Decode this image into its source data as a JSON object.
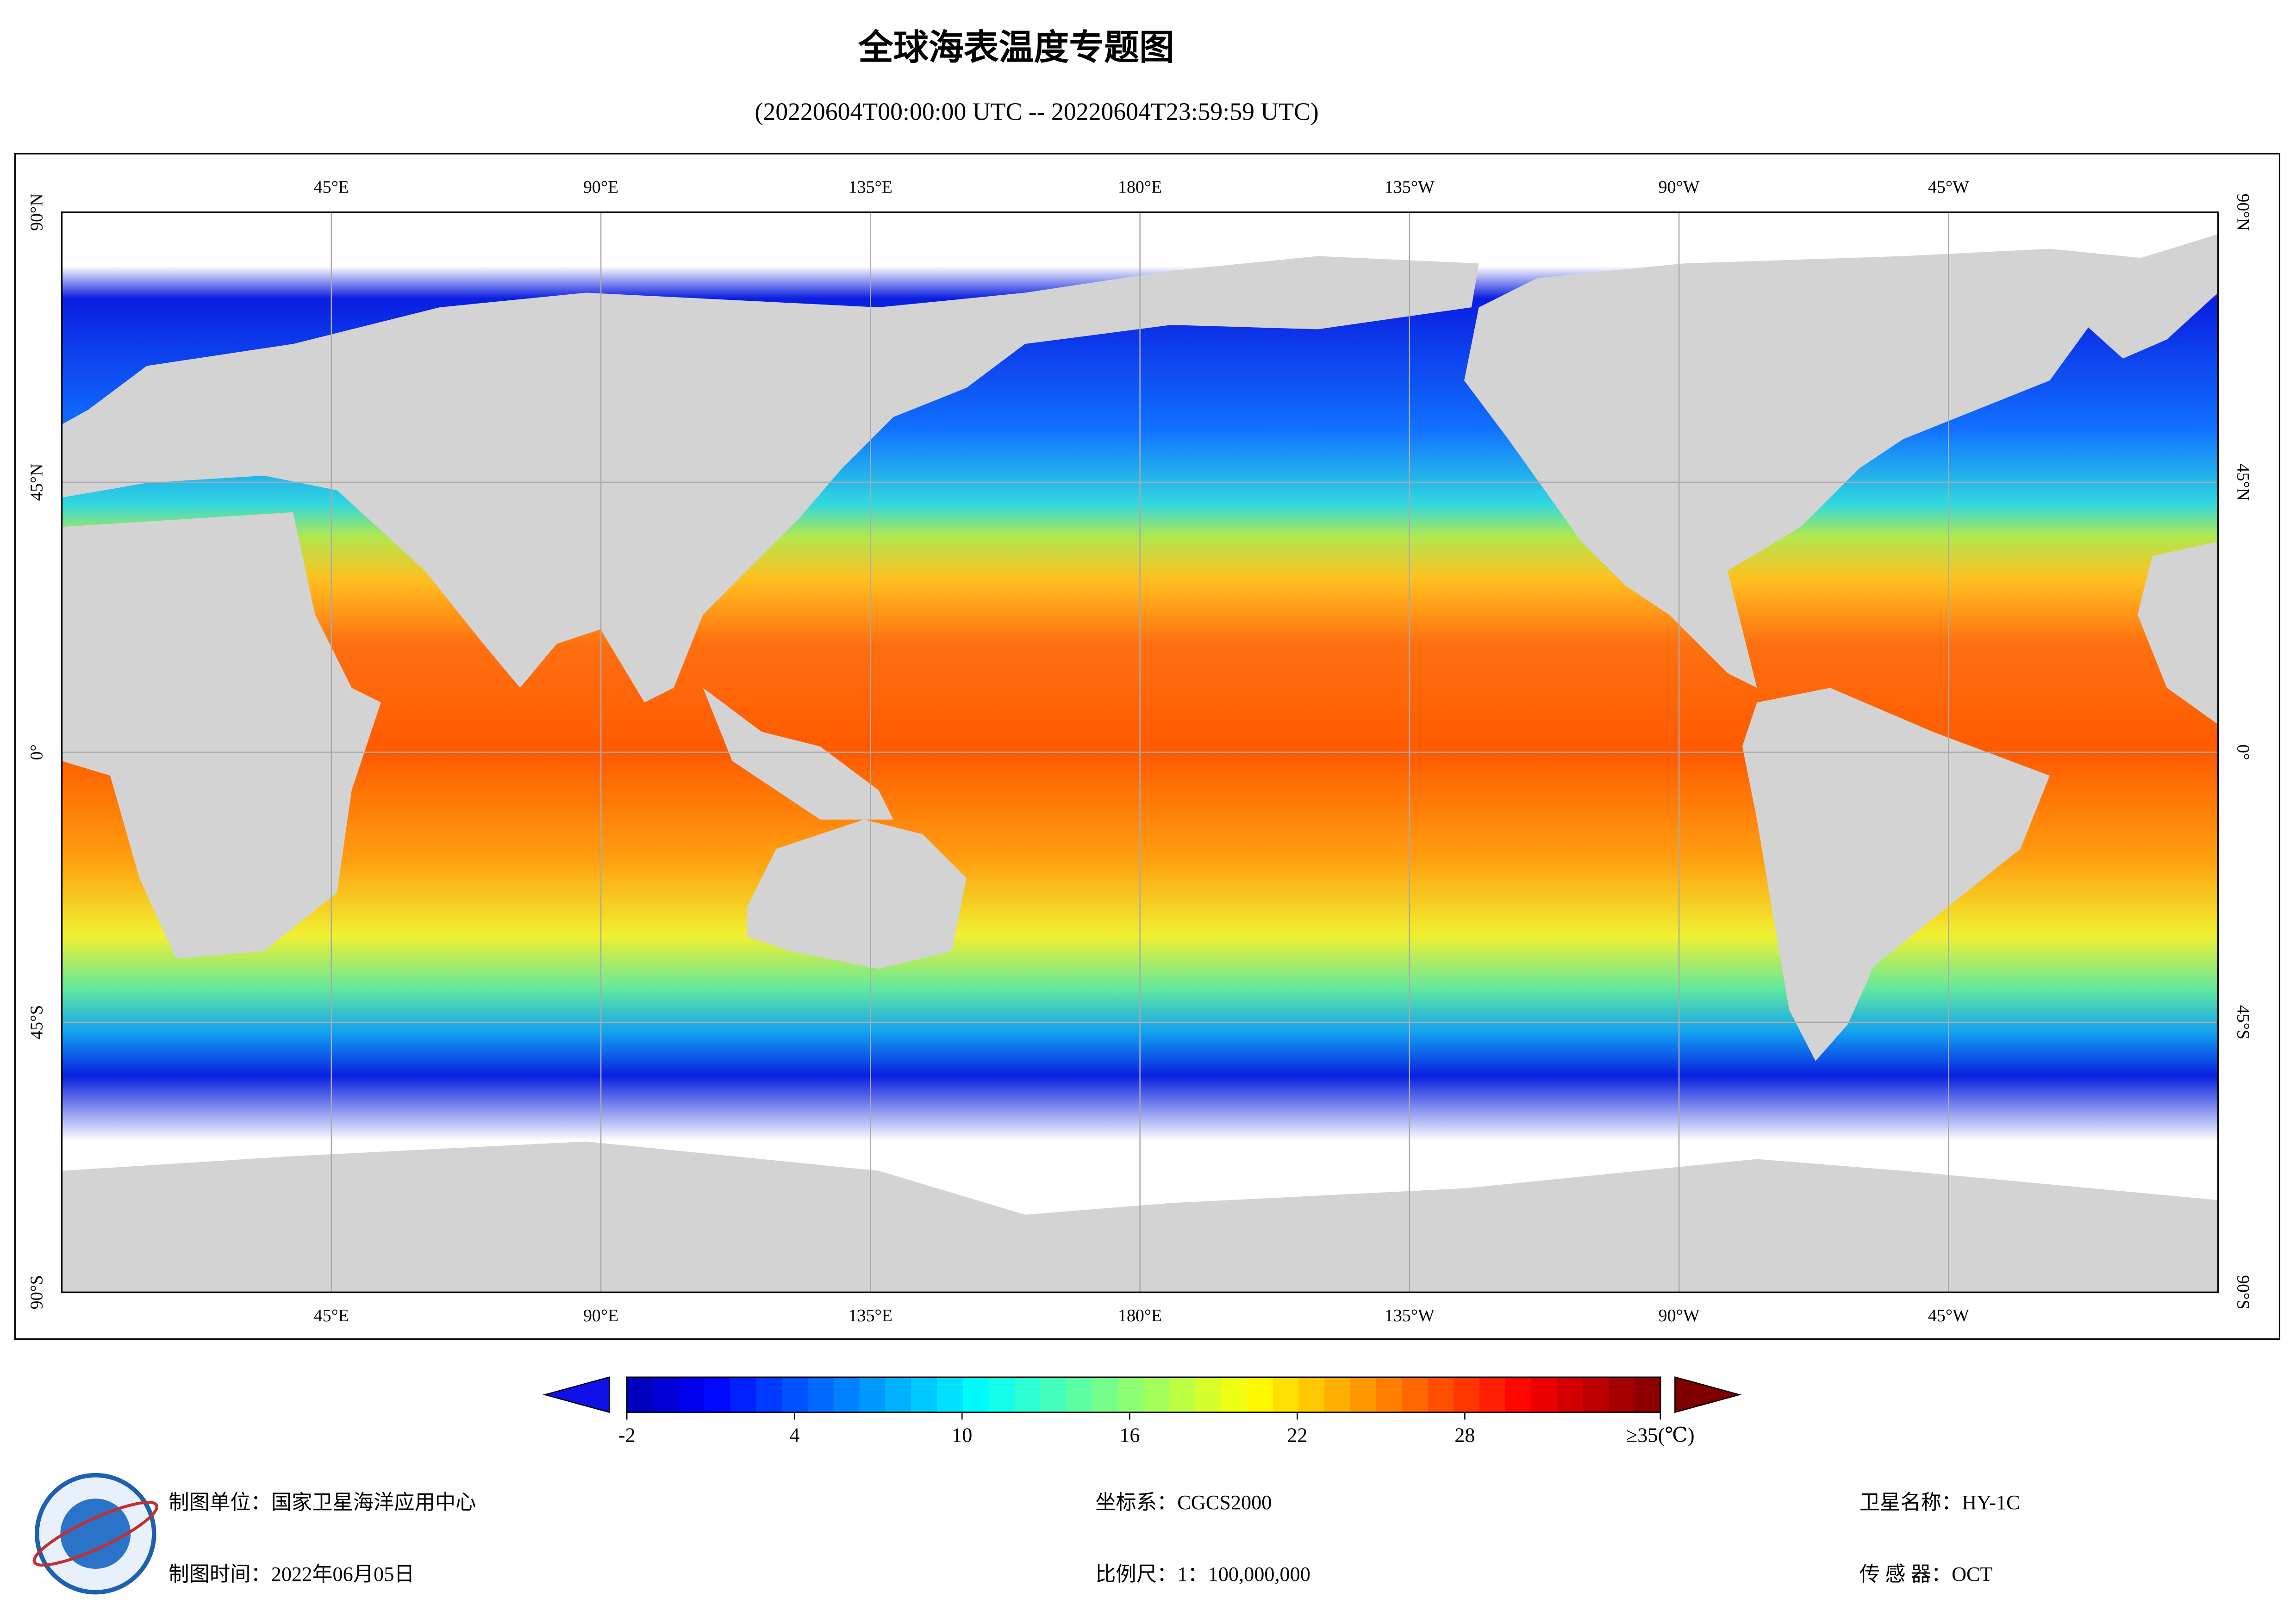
{
  "title": "全球海表温度专题图",
  "subtitle": "(20220604T00:00:00 UTC -- 20220604T23:59:59 UTC)",
  "map": {
    "lon_labels": [
      "45°E",
      "90°E",
      "135°E",
      "180°E",
      "135°W",
      "90°W",
      "45°W"
    ],
    "lat_labels": [
      "90°N",
      "45°N",
      "0°",
      "45°S",
      "90°S"
    ]
  },
  "colorbar": {
    "range": [
      -2,
      35
    ],
    "ticks": [
      -2,
      4,
      10,
      16,
      22,
      28,
      {
        "value": 35,
        "label": "≥35(℃)"
      }
    ]
  },
  "footer": {
    "unit": "制图单位：国家卫星海洋应用中心",
    "time": "制图时间：2022年06月05日",
    "crs": "坐标系：CGCS2000",
    "scale": "比例尺：1：100,000,000",
    "satellite": "卫星名称：HY-1C",
    "sensor": "传 感 器：OCT"
  }
}
